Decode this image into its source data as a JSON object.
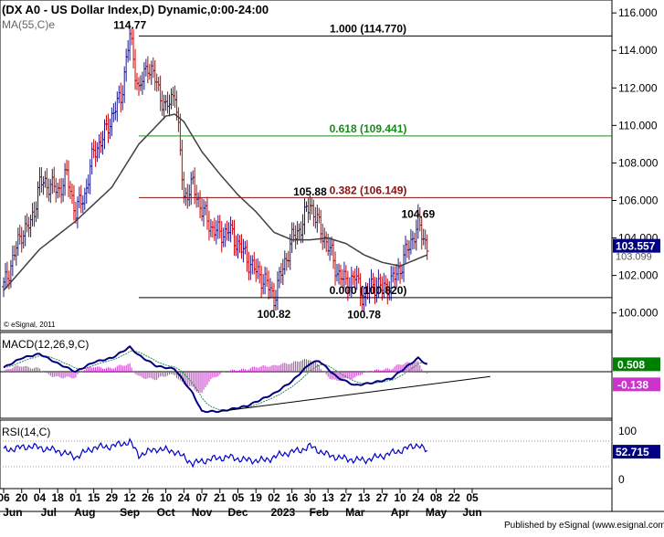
{
  "header": {
    "title": "(DX A0 - US Dollar Index,D) Dynamic,0:00-24:00",
    "ma_label": "MA(55,C)e",
    "copyright": "© eSignal, 2011",
    "published": "Published by eSignal (www.esignal.com)"
  },
  "colors": {
    "up_bar": "#1a1a8c",
    "down_bar": "#cc0000",
    "ma_line": "#404040",
    "fib_top": "#000000",
    "fib_618": "#1a8a1a",
    "fib_382": "#8b1010",
    "fib_base": "#000000",
    "macd_line": "#000080",
    "signal_line": "#2e8b57",
    "histogram": "#cc33cc",
    "rsi_line": "#0000cc",
    "price_box": "#000080",
    "macd_box": "#008000",
    "signal_box": "#cc33cc"
  },
  "chart_data": {
    "type": "candlestick",
    "title": "(DX A0 - US Dollar Index,D) Dynamic,0:00-24:00",
    "price_axis": {
      "range": [
        99.4,
        116.3
      ],
      "ticks": [
        "116.000",
        "114.000",
        "112.000",
        "110.000",
        "108.000",
        "106.000",
        "104.000",
        "102.000",
        "100.000"
      ]
    },
    "current_price": "103.557",
    "ma_value": "103.099",
    "ma_period": "MA(55,C)e",
    "price_anchors": [
      {
        "week": 0,
        "price": 101.4
      },
      {
        "week": 2,
        "price": 104.3
      },
      {
        "week": 3,
        "price": 104.7
      },
      {
        "week": 4,
        "price": 106.9
      },
      {
        "week": 5,
        "price": 106.9
      },
      {
        "week": 6,
        "price": 106.5
      },
      {
        "week": 7,
        "price": 107.3
      },
      {
        "week": 8,
        "price": 105.4
      },
      {
        "week": 9,
        "price": 106.3
      },
      {
        "week": 10,
        "price": 108.6
      },
      {
        "week": 11,
        "price": 109.3
      },
      {
        "week": 12,
        "price": 110.5
      },
      {
        "week": 13,
        "price": 111.5
      },
      {
        "week": 14,
        "price": 114.77
      },
      {
        "week": 15,
        "price": 111.8
      },
      {
        "week": 16,
        "price": 113.3
      },
      {
        "week": 17,
        "price": 112.2
      },
      {
        "week": 18,
        "price": 110.8
      },
      {
        "week": 19,
        "price": 111.9
      },
      {
        "week": 20,
        "price": 106.2
      },
      {
        "week": 21,
        "price": 106.8
      },
      {
        "week": 22,
        "price": 105.5
      },
      {
        "week": 23,
        "price": 104.6
      },
      {
        "week": 24,
        "price": 104.2
      },
      {
        "week": 25,
        "price": 104.4
      },
      {
        "week": 26,
        "price": 103.7
      },
      {
        "week": 27,
        "price": 102.9
      },
      {
        "week": 28,
        "price": 102.2
      },
      {
        "week": 29,
        "price": 101.7
      },
      {
        "week": 30,
        "price": 100.82
      },
      {
        "week": 31,
        "price": 102.4
      },
      {
        "week": 32,
        "price": 103.9
      },
      {
        "week": 33,
        "price": 104.6
      },
      {
        "week": 34,
        "price": 105.88
      },
      {
        "week": 35,
        "price": 104.6
      },
      {
        "week": 36,
        "price": 103.6
      },
      {
        "week": 37,
        "price": 102.2
      },
      {
        "week": 38,
        "price": 101.6
      },
      {
        "week": 39,
        "price": 101.9
      },
      {
        "week": 40,
        "price": 100.78
      },
      {
        "week": 41,
        "price": 101.6
      },
      {
        "week": 42,
        "price": 101.3
      },
      {
        "week": 43,
        "price": 101.6
      },
      {
        "week": 44,
        "price": 102.4
      },
      {
        "week": 45,
        "price": 103.6
      },
      {
        "week": 46,
        "price": 104.69
      },
      {
        "week": 47,
        "price": 103.6
      }
    ],
    "ma_anchors": [
      {
        "week": 0,
        "price": 101.2
      },
      {
        "week": 4,
        "price": 103.4
      },
      {
        "week": 8,
        "price": 104.9
      },
      {
        "week": 12,
        "price": 106.7
      },
      {
        "week": 15,
        "price": 109.0
      },
      {
        "week": 18,
        "price": 110.5
      },
      {
        "week": 19,
        "price": 110.6
      },
      {
        "week": 20,
        "price": 110.2
      },
      {
        "week": 22,
        "price": 108.6
      },
      {
        "week": 24,
        "price": 107.4
      },
      {
        "week": 26,
        "price": 106.3
      },
      {
        "week": 28,
        "price": 105.4
      },
      {
        "week": 30,
        "price": 104.3
      },
      {
        "week": 32,
        "price": 103.9
      },
      {
        "week": 34,
        "price": 103.9
      },
      {
        "week": 36,
        "price": 104.0
      },
      {
        "week": 38,
        "price": 103.7
      },
      {
        "week": 40,
        "price": 103.1
      },
      {
        "week": 42,
        "price": 102.7
      },
      {
        "week": 44,
        "price": 102.5
      },
      {
        "week": 46,
        "price": 102.9
      },
      {
        "week": 47,
        "price": 103.099
      }
    ],
    "fibonacci": [
      {
        "label": "1.000 (114.770)",
        "price": 114.77,
        "color": "#000000",
        "start_week": 15
      },
      {
        "label": "0.618 (109.441)",
        "price": 109.441,
        "color": "#1a8a1a",
        "start_week": 15
      },
      {
        "label": "0.382 (106.149)",
        "price": 106.149,
        "color": "#8b1010",
        "start_week": 15
      },
      {
        "label": "0.000 (100.820)",
        "price": 100.82,
        "color": "#000000",
        "start_week": 15
      }
    ],
    "annotations": [
      {
        "text": "114.77",
        "week": 14,
        "price": 114.77,
        "pos": "above"
      },
      {
        "text": "105.88",
        "week": 34,
        "price": 105.88,
        "pos": "above"
      },
      {
        "text": "104.69",
        "week": 46,
        "price": 104.69,
        "pos": "above"
      },
      {
        "text": "100.82",
        "week": 30,
        "price": 100.82,
        "pos": "below"
      },
      {
        "text": "100.78",
        "week": 40,
        "price": 100.78,
        "pos": "below"
      }
    ],
    "x_axis": {
      "weeks": 48,
      "ticks": [
        {
          "label": "06",
          "week": 0
        },
        {
          "label": "20",
          "week": 2
        },
        {
          "label": "04",
          "week": 4
        },
        {
          "label": "18",
          "week": 6
        },
        {
          "label": "01",
          "week": 8
        },
        {
          "label": "15",
          "week": 10
        },
        {
          "label": "29",
          "week": 12
        },
        {
          "label": "12",
          "week": 14
        },
        {
          "label": "26",
          "week": 16
        },
        {
          "label": "10",
          "week": 18
        },
        {
          "label": "24",
          "week": 20
        },
        {
          "label": "07",
          "week": 22
        },
        {
          "label": "21",
          "week": 24
        },
        {
          "label": "05",
          "week": 26
        },
        {
          "label": "19",
          "week": 28
        },
        {
          "label": "02",
          "week": 30
        },
        {
          "label": "16",
          "week": 32
        },
        {
          "label": "30",
          "week": 34
        },
        {
          "label": "13",
          "week": 36
        },
        {
          "label": "27",
          "week": 38
        },
        {
          "label": "13",
          "week": 40
        },
        {
          "label": "27",
          "week": 42
        },
        {
          "label": "10",
          "week": 44
        },
        {
          "label": "24",
          "week": 46
        },
        {
          "label": "08",
          "week": 48
        },
        {
          "label": "22",
          "week": 50
        },
        {
          "label": "05",
          "week": 52
        }
      ],
      "months": [
        {
          "label": "Jun",
          "week": 1
        },
        {
          "label": "Jul",
          "week": 5
        },
        {
          "label": "Aug",
          "week": 9
        },
        {
          "label": "Sep",
          "week": 14
        },
        {
          "label": "Oct",
          "week": 18
        },
        {
          "label": "Nov",
          "week": 22
        },
        {
          "label": "Dec",
          "week": 26
        },
        {
          "label": "2023",
          "week": 31
        },
        {
          "label": "Feb",
          "week": 35
        },
        {
          "label": "Mar",
          "week": 39
        },
        {
          "label": "Apr",
          "week": 44
        },
        {
          "label": "May",
          "week": 48
        },
        {
          "label": "Jun",
          "week": 52
        }
      ]
    },
    "macd": {
      "label": "MACD(12,26,9,C)",
      "macd_value": "0.508",
      "signal_value": "-0.138",
      "range": [
        -3.2,
        2.6
      ],
      "macd_anchors": [
        {
          "week": 0,
          "v": 0.3
        },
        {
          "week": 2,
          "v": 1.0
        },
        {
          "week": 4,
          "v": 1.3
        },
        {
          "week": 6,
          "v": 0.6
        },
        {
          "week": 8,
          "v": 0.0
        },
        {
          "week": 10,
          "v": 0.7
        },
        {
          "week": 12,
          "v": 1.0
        },
        {
          "week": 14,
          "v": 1.8
        },
        {
          "week": 15,
          "v": 1.2
        },
        {
          "week": 17,
          "v": 0.4
        },
        {
          "week": 19,
          "v": 0.2
        },
        {
          "week": 21,
          "v": -1.6
        },
        {
          "week": 22,
          "v": -2.9
        },
        {
          "week": 24,
          "v": -2.9
        },
        {
          "week": 27,
          "v": -2.5
        },
        {
          "week": 30,
          "v": -1.6
        },
        {
          "week": 32,
          "v": -0.7
        },
        {
          "week": 34,
          "v": 0.6
        },
        {
          "week": 35,
          "v": 0.8
        },
        {
          "week": 37,
          "v": -0.4
        },
        {
          "week": 39,
          "v": -1.0
        },
        {
          "week": 41,
          "v": -0.8
        },
        {
          "week": 43,
          "v": -0.5
        },
        {
          "week": 45,
          "v": 0.5
        },
        {
          "week": 46,
          "v": 1.0
        },
        {
          "week": 47,
          "v": 0.508
        }
      ],
      "trendline": [
        {
          "week": 24,
          "v": -2.9
        },
        {
          "week": 54,
          "v": -0.35
        }
      ]
    },
    "rsi": {
      "label": "RSI(14,C)",
      "value": "52.715",
      "range": [
        0,
        100
      ],
      "ticks": [
        "100",
        "0"
      ],
      "anchors": [
        {
          "week": 0,
          "v": 56
        },
        {
          "week": 3,
          "v": 62
        },
        {
          "week": 6,
          "v": 55
        },
        {
          "week": 8,
          "v": 45
        },
        {
          "week": 10,
          "v": 60
        },
        {
          "week": 12,
          "v": 62
        },
        {
          "week": 14,
          "v": 69
        },
        {
          "week": 15,
          "v": 48
        },
        {
          "week": 17,
          "v": 58
        },
        {
          "week": 19,
          "v": 54
        },
        {
          "week": 21,
          "v": 35
        },
        {
          "week": 23,
          "v": 42
        },
        {
          "week": 25,
          "v": 45
        },
        {
          "week": 27,
          "v": 40
        },
        {
          "week": 29,
          "v": 40
        },
        {
          "week": 31,
          "v": 50
        },
        {
          "week": 33,
          "v": 56
        },
        {
          "week": 34,
          "v": 62
        },
        {
          "week": 36,
          "v": 48
        },
        {
          "week": 38,
          "v": 42
        },
        {
          "week": 40,
          "v": 40
        },
        {
          "week": 42,
          "v": 47
        },
        {
          "week": 44,
          "v": 55
        },
        {
          "week": 46,
          "v": 65
        },
        {
          "week": 47,
          "v": 52.715
        }
      ]
    }
  }
}
